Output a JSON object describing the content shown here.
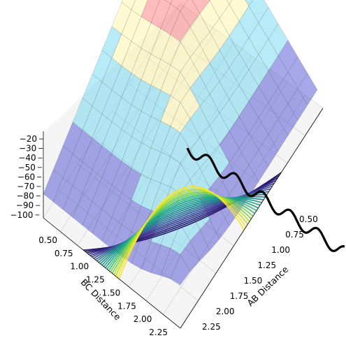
{
  "chart_data": {
    "type": "surface3d",
    "title": "",
    "xlabel": "AB Distance",
    "ylabel": "BC Distance",
    "zlabel": "",
    "x_ticks": [
      "0.50",
      "0.75",
      "1.00",
      "1.25",
      "1.50",
      "1.75",
      "2.00",
      "2.25"
    ],
    "y_ticks": [
      "0.50",
      "0.75",
      "1.00",
      "1.25",
      "1.50",
      "1.75",
      "2.00",
      "2.25"
    ],
    "z_ticks": [
      "−20",
      "−30",
      "−40",
      "−50",
      "−60",
      "−70",
      "−80",
      "−90",
      "−100"
    ],
    "x_range": [
      0.5,
      2.4
    ],
    "y_range": [
      0.5,
      2.4
    ],
    "z_range": [
      -100,
      -20
    ],
    "colormap": "jet surface over viridis filled contours",
    "grid": true,
    "legend": "none",
    "trajectory": {
      "name": "",
      "color": "#000000",
      "note": "wavy black reaction path starting in the entrance channel and leaving along AB"
    },
    "colors": {
      "surface_low": "#3a3fd0",
      "surface_mid": "#5fd3f0",
      "surface_high": "#ff6a6a",
      "ridge": "#fff49a",
      "contour_low": "#2b1a6e",
      "contour_high": "#f4e53a",
      "pane": "#ececec"
    }
  }
}
